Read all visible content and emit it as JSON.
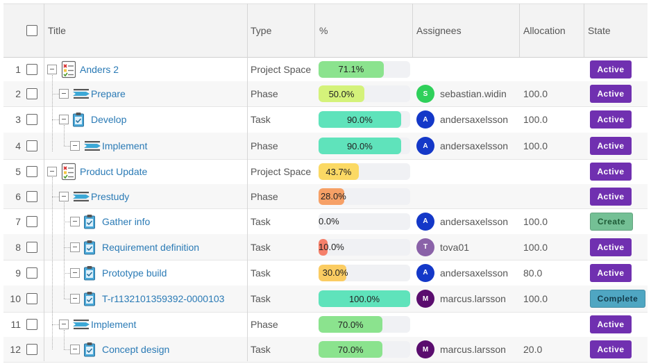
{
  "headers": {
    "title": "Title",
    "type": "Type",
    "percent": "%",
    "assignees": "Assignees",
    "allocation": "Allocation",
    "state": "State"
  },
  "state_colors": {
    "Active": "#7030b0",
    "Create": "#74c095",
    "Complete": "#4fa6c2"
  },
  "rows": [
    {
      "num": "1",
      "title": "Anders 2",
      "type": "Project Space",
      "percent": 71.1,
      "percent_label": "71.1%",
      "bar_color": "#8be38e",
      "assignee": "",
      "avatar": "",
      "avatar_color": "",
      "allocation": "",
      "state": "Active",
      "icon": "project-space-icon",
      "level": 0
    },
    {
      "num": "2",
      "title": "Prepare",
      "type": "Phase",
      "percent": 50.0,
      "percent_label": "50.0%",
      "bar_color": "#d4f27a",
      "assignee": "sebastian.widin",
      "avatar": "S",
      "avatar_color": "#2fd05a",
      "allocation": "100.0",
      "state": "Active",
      "icon": "phase-icon",
      "level": 1
    },
    {
      "num": "3",
      "title": "Develop",
      "type": "Task",
      "percent": 90.0,
      "percent_label": "90.0%",
      "bar_color": "#5fe3bb",
      "assignee": "andersaxelsson",
      "avatar": "A",
      "avatar_color": "#1438c8",
      "allocation": "100.0",
      "state": "Active",
      "icon": "task-icon",
      "level": 1
    },
    {
      "num": "4",
      "title": "Implement",
      "type": "Phase",
      "percent": 90.0,
      "percent_label": "90.0%",
      "bar_color": "#5fe3bb",
      "assignee": "andersaxelsson",
      "avatar": "A",
      "avatar_color": "#1438c8",
      "allocation": "100.0",
      "state": "Active",
      "icon": "phase-icon",
      "level": 2
    },
    {
      "num": "5",
      "title": "Product Update",
      "type": "Project Space",
      "percent": 43.7,
      "percent_label": "43.7%",
      "bar_color": "#fbd964",
      "assignee": "",
      "avatar": "",
      "avatar_color": "",
      "allocation": "",
      "state": "Active",
      "icon": "project-space-icon",
      "level": 0
    },
    {
      "num": "6",
      "title": "Prestudy",
      "type": "Phase",
      "percent": 28.0,
      "percent_label": "28.0%",
      "bar_color": "#f6a066",
      "assignee": "",
      "avatar": "",
      "avatar_color": "",
      "allocation": "",
      "state": "Active",
      "icon": "phase-icon",
      "level": 1
    },
    {
      "num": "7",
      "title": "Gather info",
      "type": "Task",
      "percent": 0.0,
      "percent_label": "0.0%",
      "bar_color": "#f0f1f4",
      "assignee": "andersaxelsson",
      "avatar": "A",
      "avatar_color": "#1438c8",
      "allocation": "100.0",
      "state": "Create",
      "icon": "task-icon",
      "level": 2
    },
    {
      "num": "8",
      "title": "Requirement definition",
      "type": "Task",
      "percent": 10.0,
      "percent_label": "10.0%",
      "bar_color": "#f5806a",
      "assignee": "tova01",
      "avatar": "T",
      "avatar_color": "#8a62a8",
      "allocation": "100.0",
      "state": "Active",
      "icon": "task-icon",
      "level": 2
    },
    {
      "num": "9",
      "title": "Prototype build",
      "type": "Task",
      "percent": 30.0,
      "percent_label": "30.0%",
      "bar_color": "#fbcc62",
      "assignee": "andersaxelsson",
      "avatar": "A",
      "avatar_color": "#1438c8",
      "allocation": "80.0",
      "state": "Active",
      "icon": "task-icon",
      "level": 2
    },
    {
      "num": "10",
      "title": "T-r1132101359392-0000103",
      "type": "Task",
      "percent": 100.0,
      "percent_label": "100.0%",
      "bar_color": "#5fe3bb",
      "assignee": "marcus.larsson",
      "avatar": "M",
      "avatar_color": "#5a0d6e",
      "allocation": "100.0",
      "state": "Complete",
      "icon": "task-icon",
      "level": 2
    },
    {
      "num": "11",
      "title": "Implement",
      "type": "Phase",
      "percent": 70.0,
      "percent_label": "70.0%",
      "bar_color": "#8be38e",
      "assignee": "",
      "avatar": "",
      "avatar_color": "",
      "allocation": "",
      "state": "Active",
      "icon": "phase-icon",
      "level": 1
    },
    {
      "num": "12",
      "title": "Concept design",
      "type": "Task",
      "percent": 70.0,
      "percent_label": "70.0%",
      "bar_color": "#8be38e",
      "assignee": "marcus.larsson",
      "avatar": "M",
      "avatar_color": "#5a0d6e",
      "allocation": "20.0",
      "state": "Active",
      "icon": "task-icon",
      "level": 2
    }
  ]
}
